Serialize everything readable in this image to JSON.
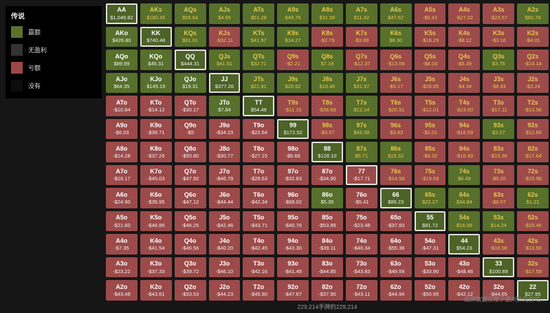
{
  "legend": {
    "title": "传说",
    "items": [
      {
        "label": "赢额",
        "color": "#5a7228"
      },
      {
        "label": "无盈利",
        "color": "#333333"
      },
      {
        "label": "亏额",
        "color": "#9c4848"
      },
      {
        "label": "没有",
        "color": "#0d0d0d"
      }
    ]
  },
  "colors": {
    "win_bg": "#57702b",
    "loss_bg": "#9c4a4a",
    "suited_text": "#e5c84e",
    "offsuit_text": "#ffffff",
    "highlight_border": "#e2e2da"
  },
  "chart_data": {
    "type": "heatmap",
    "description": "13x13 poker starting-hand profit matrix; w = win (green), l = loss (red)",
    "rows": [
      [
        [
          "AA",
          "$1,049.82",
          "w"
        ],
        [
          "AKs",
          "$180.45",
          "w"
        ],
        [
          "AQs",
          "$59.64",
          "w"
        ],
        [
          "AJs",
          "$4.65",
          "w"
        ],
        [
          "ATs",
          "$61.28",
          "w"
        ],
        [
          "A9s",
          "$49.76",
          "w"
        ],
        [
          "A8s",
          "$31.56",
          "w"
        ],
        [
          "A7s",
          "$11.42",
          "w"
        ],
        [
          "A6s",
          "$47.62",
          "w"
        ],
        [
          "A5s",
          "-$0.41",
          "l"
        ],
        [
          "A4s",
          "-$27.02",
          "l"
        ],
        [
          "A3s",
          "-$23.57",
          "l"
        ],
        [
          "A2s",
          "$60.78",
          "w"
        ]
      ],
      [
        [
          "AKo",
          "$426.80",
          "w"
        ],
        [
          "KK",
          "$740.48",
          "w"
        ],
        [
          "KQs",
          "$91.01",
          "w"
        ],
        [
          "KJs",
          "-$32.11",
          "l"
        ],
        [
          "KTs",
          "$41.97",
          "w"
        ],
        [
          "K9s",
          "$14.27",
          "w"
        ],
        [
          "K8s",
          "-$2.79",
          "l"
        ],
        [
          "K7s",
          "-$3.89",
          "l"
        ],
        [
          "K6s",
          "$8.30",
          "w"
        ],
        [
          "K5s",
          "-$18.29",
          "l"
        ],
        [
          "K4s",
          "-$8.12",
          "l"
        ],
        [
          "K3s",
          "-$3.16",
          "l"
        ],
        [
          "K2s",
          "-$4.01",
          "l"
        ]
      ],
      [
        [
          "AQo",
          "$89.99",
          "w"
        ],
        [
          "KQo",
          "$45.31",
          "w"
        ],
        [
          "QQ",
          "$444.31",
          "w"
        ],
        [
          "QJs",
          "$41.51",
          "w"
        ],
        [
          "QTs",
          "$32.71",
          "w"
        ],
        [
          "Q9s",
          "-$2.21",
          "l"
        ],
        [
          "Q8s",
          "$7.19",
          "w"
        ],
        [
          "Q7s",
          "-$12.37",
          "l"
        ],
        [
          "Q6s",
          "-$13.59",
          "l"
        ],
        [
          "Q5s",
          "-$8.03",
          "l"
        ],
        [
          "Q4s",
          "-$5.39",
          "l"
        ],
        [
          "Q3s",
          "$3.75",
          "w"
        ],
        [
          "Q2s",
          "-$14.14",
          "l"
        ]
      ],
      [
        [
          "AJo",
          "$64.35",
          "w"
        ],
        [
          "KJo",
          "$145.19",
          "w"
        ],
        [
          "QJo",
          "$19.31",
          "w"
        ],
        [
          "JJ",
          "$377.26",
          "w"
        ],
        [
          "JTs",
          "$21.91",
          "w"
        ],
        [
          "J9s",
          "$25.62",
          "w"
        ],
        [
          "J8s",
          "$18.46",
          "w"
        ],
        [
          "J7s",
          "$31.97",
          "w"
        ],
        [
          "J6s",
          "-$9.17",
          "l"
        ],
        [
          "J5s",
          "-$28.85",
          "l"
        ],
        [
          "J4s",
          "-$4.34",
          "l"
        ],
        [
          "J3s",
          "-$8.83",
          "l"
        ],
        [
          "J2s",
          "-$3.24",
          "l"
        ]
      ],
      [
        [
          "ATo",
          "-$10.84",
          "l"
        ],
        [
          "KTo",
          "-$14.12",
          "l"
        ],
        [
          "QTo",
          "-$30.17",
          "l"
        ],
        [
          "JTo",
          "$7.84",
          "w"
        ],
        [
          "TT",
          "$54.48",
          "w"
        ],
        [
          "T9s",
          "-$11.15",
          "l"
        ],
        [
          "T8s",
          "-$36.69",
          "l"
        ],
        [
          "T7s",
          "$12.14",
          "w"
        ],
        [
          "T6s",
          "-$20.91",
          "l"
        ],
        [
          "T5s",
          "-$12.01",
          "l"
        ],
        [
          "T4s",
          "-$23.60",
          "l"
        ],
        [
          "T3s",
          "-$17.11",
          "l"
        ],
        [
          "T2s",
          "-$13.56",
          "l"
        ]
      ],
      [
        [
          "A9o",
          "-$6.03",
          "l"
        ],
        [
          "K9o",
          "-$39.71",
          "l"
        ],
        [
          "Q9o",
          "-$5",
          "l"
        ],
        [
          "J9o",
          "-$34.23",
          "l"
        ],
        [
          "T9o",
          "-$22.64",
          "l"
        ],
        [
          "99",
          "$172.52",
          "w"
        ],
        [
          "98s",
          "-$3.57",
          "l"
        ],
        [
          "97s",
          "$43.38",
          "w"
        ],
        [
          "96s",
          "-$3.83",
          "l"
        ],
        [
          "95s",
          "-$2.01",
          "l"
        ],
        [
          "94s",
          "-$16.59",
          "l"
        ],
        [
          "93s",
          "$3.27",
          "w"
        ],
        [
          "92s",
          "-$12.80",
          "l"
        ]
      ],
      [
        [
          "A8o",
          "-$14.28",
          "l"
        ],
        [
          "K8o",
          "-$37.26",
          "l"
        ],
        [
          "Q8o",
          "-$50.80",
          "l"
        ],
        [
          "J8o",
          "-$30.77",
          "l"
        ],
        [
          "T8o",
          "-$27.15",
          "l"
        ],
        [
          "98o",
          "-$6.66",
          "l"
        ],
        [
          "88",
          "$128.10",
          "w"
        ],
        [
          "87s",
          "$5.71",
          "w"
        ],
        [
          "86s",
          "$15.32",
          "w"
        ],
        [
          "85s",
          "-$9.32",
          "l"
        ],
        [
          "84s",
          "-$10.49",
          "l"
        ],
        [
          "83s",
          "-$15.36",
          "l"
        ],
        [
          "82s",
          "-$17.64",
          "l"
        ]
      ],
      [
        [
          "A7o",
          "-$16.17",
          "l"
        ],
        [
          "K7o",
          "-$45.03",
          "l"
        ],
        [
          "Q7o",
          "-$47.92",
          "l"
        ],
        [
          "J7o",
          "-$46.79",
          "l"
        ],
        [
          "T7o",
          "-$28.63",
          "l"
        ],
        [
          "97o",
          "-$32.83",
          "l"
        ],
        [
          "87o",
          "-$34.90",
          "l"
        ],
        [
          "77",
          "-$17.71",
          "l"
        ],
        [
          "76s",
          "-$14.58",
          "l"
        ],
        [
          "75s",
          "-$19.69",
          "l"
        ],
        [
          "74s",
          "$6.49",
          "w"
        ],
        [
          "73s",
          "-$0.20",
          "l"
        ],
        [
          "72s",
          "-$15.98",
          "l"
        ]
      ],
      [
        [
          "A6o",
          "-$24.90",
          "l"
        ],
        [
          "K6o",
          "-$35.95",
          "l"
        ],
        [
          "Q6o",
          "-$47.12",
          "l"
        ],
        [
          "J6o",
          "-$44.44",
          "l"
        ],
        [
          "T6o",
          "-$42.34",
          "l"
        ],
        [
          "96o",
          "-$69.02",
          "l"
        ],
        [
          "86o",
          "$5.35",
          "w"
        ],
        [
          "76o",
          "-$5.41",
          "l"
        ],
        [
          "66",
          "$89.23",
          "w"
        ],
        [
          "65s",
          "$22.27",
          "w"
        ],
        [
          "64s",
          "$34.84",
          "w"
        ],
        [
          "63s",
          "-$8.07",
          "l"
        ],
        [
          "62s",
          "$1.21",
          "w"
        ]
      ],
      [
        [
          "A5o",
          "-$21.60",
          "l"
        ],
        [
          "K5o",
          "-$46.86",
          "l"
        ],
        [
          "Q5o",
          "-$46.25",
          "l"
        ],
        [
          "J5o",
          "-$42.46",
          "l"
        ],
        [
          "T5o",
          "-$43.71",
          "l"
        ],
        [
          "95o",
          "-$40.76",
          "l"
        ],
        [
          "85o",
          "-$53.89",
          "l"
        ],
        [
          "75o",
          "-$23.48",
          "l"
        ],
        [
          "65o",
          "-$37.83",
          "l"
        ],
        [
          "55",
          "$81.72",
          "w"
        ],
        [
          "54s",
          "$16.09",
          "w"
        ],
        [
          "53s",
          "$14.24",
          "w"
        ],
        [
          "52s",
          "-$33.46",
          "l"
        ]
      ],
      [
        [
          "A4o",
          "-$7.35",
          "l"
        ],
        [
          "K4o",
          "-$41.54",
          "l"
        ],
        [
          "Q4o",
          "-$46.56",
          "l"
        ],
        [
          "J4o",
          "-$40.20",
          "l"
        ],
        [
          "T4o",
          "-$42.45",
          "l"
        ],
        [
          "94o",
          "-$43.30",
          "l"
        ],
        [
          "84o",
          "-$39.11",
          "l"
        ],
        [
          "74o",
          "-$46.34",
          "l"
        ],
        [
          "64o",
          "-$55.36",
          "l"
        ],
        [
          "54o",
          "-$47.31",
          "l"
        ],
        [
          "44",
          "$54.23",
          "w"
        ],
        [
          "43s",
          "-$16.06",
          "l"
        ],
        [
          "42s",
          "-$13.50",
          "l"
        ]
      ],
      [
        [
          "A3o",
          "-$23.22",
          "l"
        ],
        [
          "K3o",
          "-$37.33",
          "l"
        ],
        [
          "Q3o",
          "-$39.72",
          "l"
        ],
        [
          "J3o",
          "-$46.10",
          "l"
        ],
        [
          "T3o",
          "-$42.16",
          "l"
        ],
        [
          "93o",
          "-$41.49",
          "l"
        ],
        [
          "83o",
          "-$44.85",
          "l"
        ],
        [
          "73o",
          "-$43.83",
          "l"
        ],
        [
          "63o",
          "-$49.59",
          "l"
        ],
        [
          "53o",
          "-$33.90",
          "l"
        ],
        [
          "43o",
          "-$48.46",
          "l"
        ],
        [
          "33",
          "$100.89",
          "w"
        ],
        [
          "32s",
          "-$17.58",
          "l"
        ]
      ],
      [
        [
          "A2o",
          "-$43.48",
          "l"
        ],
        [
          "K2o",
          "-$43.61",
          "l"
        ],
        [
          "Q2o",
          "-$33.53",
          "l"
        ],
        [
          "J2o",
          "-$44.23",
          "l"
        ],
        [
          "T2o",
          "-$45.90",
          "l"
        ],
        [
          "92o",
          "-$47.67",
          "l"
        ],
        [
          "82o",
          "-$37.90",
          "l"
        ],
        [
          "72o",
          "-$43.11",
          "l"
        ],
        [
          "62o",
          "-$44.94",
          "l"
        ],
        [
          "52o",
          "-$50.95",
          "l"
        ],
        [
          "42o",
          "-$42.12",
          "l"
        ],
        [
          "32o",
          "-$44.65",
          "l"
        ],
        [
          "22",
          "$27.95",
          "w"
        ]
      ]
    ]
  },
  "footer": {
    "center": "229,214手牌的229,214",
    "right": "底牌数据仅限于德州扑克游戏。"
  }
}
